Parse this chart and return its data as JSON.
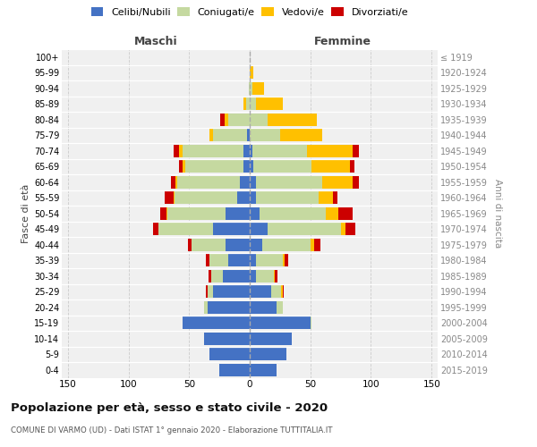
{
  "age_groups_bottom_to_top": [
    "0-4",
    "5-9",
    "10-14",
    "15-19",
    "20-24",
    "25-29",
    "30-34",
    "35-39",
    "40-44",
    "45-49",
    "50-54",
    "55-59",
    "60-64",
    "65-69",
    "70-74",
    "75-79",
    "80-84",
    "85-89",
    "90-94",
    "95-99",
    "100+"
  ],
  "birth_years_bottom_to_top": [
    "2015-2019",
    "2010-2014",
    "2005-2009",
    "2000-2004",
    "1995-1999",
    "1990-1994",
    "1985-1989",
    "1980-1984",
    "1975-1979",
    "1970-1974",
    "1965-1969",
    "1960-1964",
    "1955-1959",
    "1950-1954",
    "1945-1949",
    "1940-1944",
    "1935-1939",
    "1930-1934",
    "1925-1929",
    "1920-1924",
    "≤ 1919"
  ],
  "maschi": {
    "celibi": [
      25,
      33,
      38,
      55,
      35,
      30,
      22,
      18,
      20,
      30,
      20,
      10,
      8,
      5,
      5,
      2,
      0,
      0,
      0,
      0,
      0
    ],
    "coniugati": [
      0,
      0,
      0,
      0,
      3,
      5,
      10,
      15,
      28,
      45,
      48,
      52,
      52,
      48,
      50,
      28,
      18,
      3,
      1,
      0,
      0
    ],
    "vedovi": [
      0,
      0,
      0,
      0,
      0,
      0,
      0,
      0,
      0,
      0,
      1,
      1,
      1,
      2,
      3,
      3,
      3,
      2,
      0,
      0,
      0
    ],
    "divorziati": [
      0,
      0,
      0,
      0,
      0,
      1,
      2,
      3,
      3,
      5,
      5,
      7,
      4,
      3,
      5,
      0,
      3,
      0,
      0,
      0,
      0
    ]
  },
  "femmine": {
    "nubili": [
      22,
      30,
      35,
      50,
      22,
      18,
      5,
      5,
      10,
      15,
      8,
      5,
      5,
      3,
      2,
      0,
      0,
      0,
      0,
      0,
      0
    ],
    "coniugate": [
      0,
      0,
      0,
      1,
      5,
      8,
      15,
      22,
      40,
      60,
      55,
      52,
      55,
      48,
      45,
      25,
      15,
      5,
      2,
      0,
      0
    ],
    "vedove": [
      0,
      0,
      0,
      0,
      0,
      1,
      1,
      2,
      3,
      4,
      10,
      12,
      25,
      32,
      38,
      35,
      40,
      22,
      10,
      3,
      0
    ],
    "divorziate": [
      0,
      0,
      0,
      0,
      0,
      1,
      2,
      3,
      5,
      8,
      12,
      3,
      5,
      3,
      5,
      0,
      0,
      0,
      0,
      0,
      0
    ]
  },
  "colors": {
    "celibi": "#4472c4",
    "coniugati": "#c5d9a0",
    "vedovi": "#ffc000",
    "divorziati": "#cc0000"
  },
  "xlim": 155,
  "title": "Popolazione per età, sesso e stato civile - 2020",
  "subtitle": "COMUNE DI VARMO (UD) - Dati ISTAT 1° gennaio 2020 - Elaborazione TUTTITALIA.IT",
  "ylabel_left": "Fasce di età",
  "ylabel_right": "Anni di nascita",
  "legend_labels": [
    "Celibi/Nubili",
    "Coniugati/e",
    "Vedovi/e",
    "Divorziati/e"
  ],
  "maschi_label": "Maschi",
  "femmine_label": "Femmine"
}
